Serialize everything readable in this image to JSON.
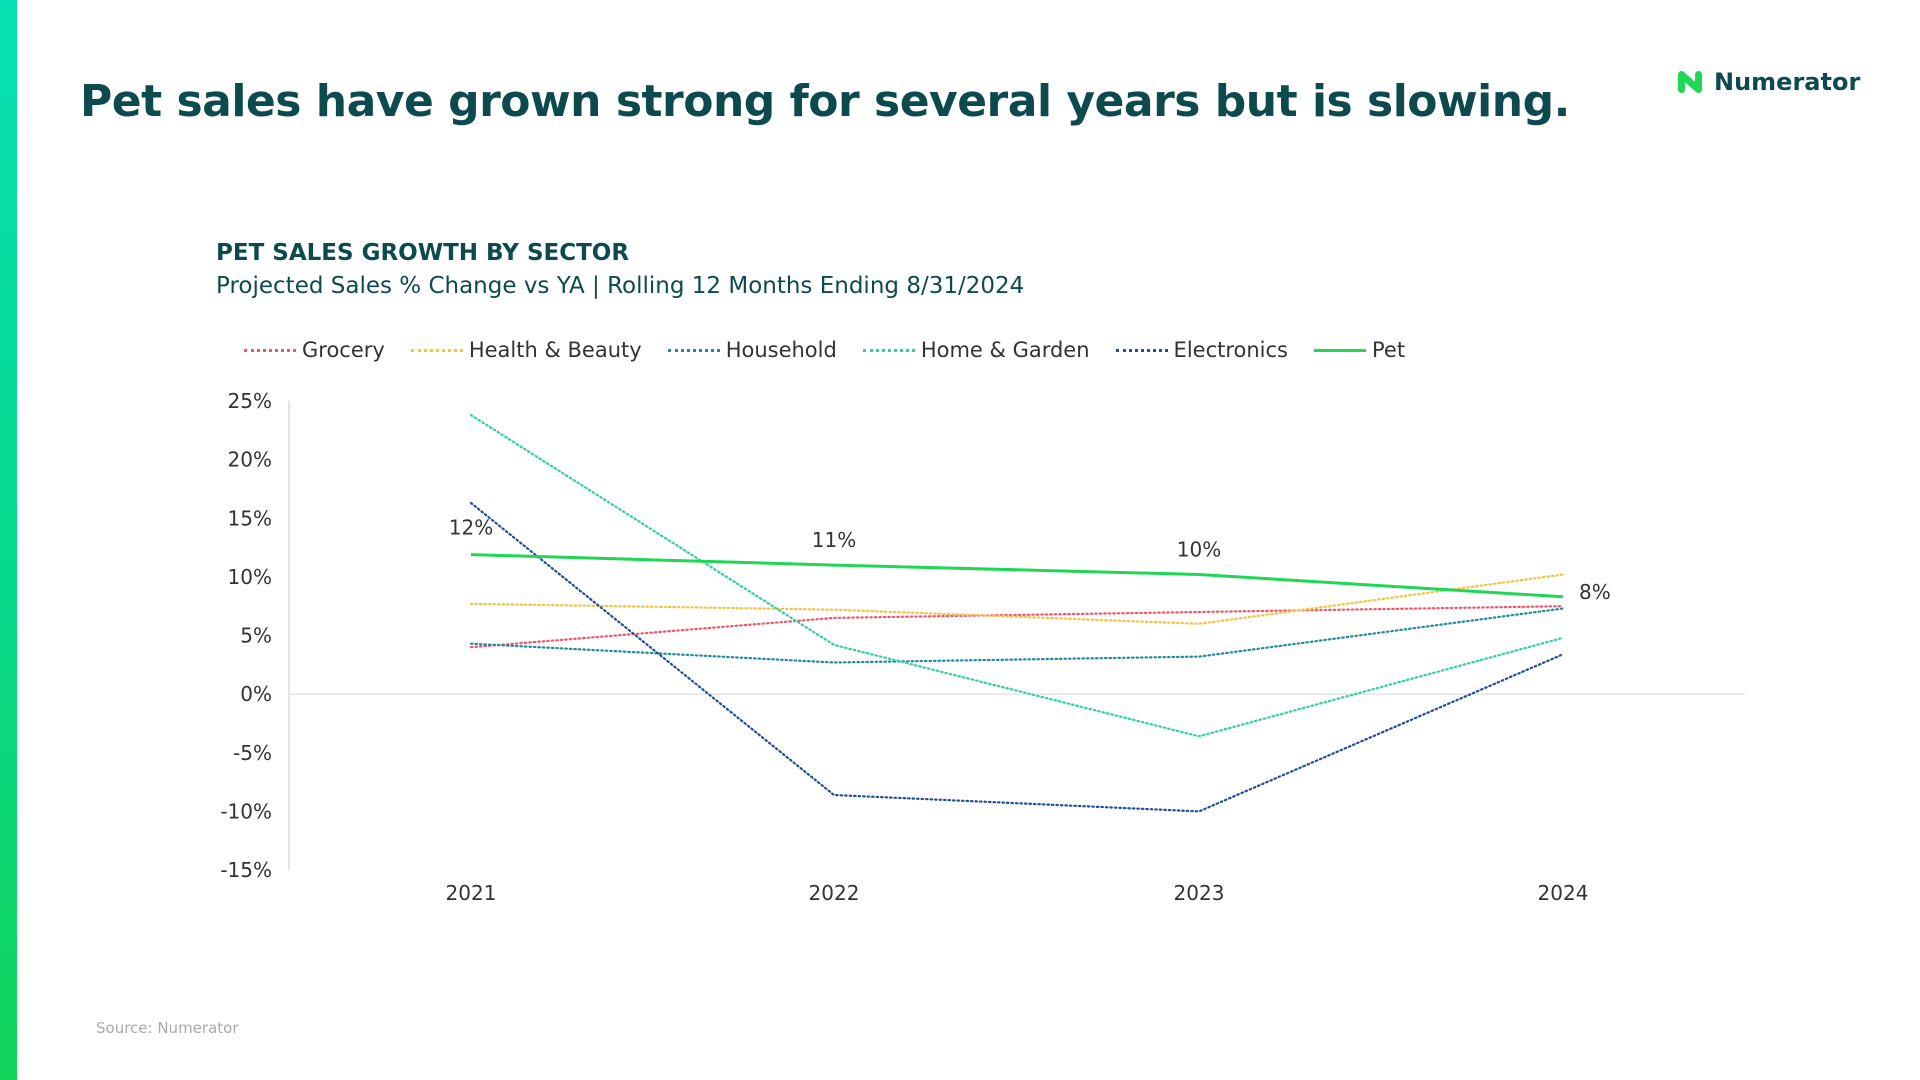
{
  "slide": {
    "title": "Pet sales have grown strong for several years but is slowing.",
    "source": "Source: Numerator"
  },
  "brand": {
    "name": "Numerator",
    "icon": "numerator-logo-icon",
    "color": "#1fd655"
  },
  "colors": {
    "title": "#0d4a4e",
    "accent": "#07d98a"
  },
  "chart_data": {
    "type": "line",
    "title": "PET SALES GROWTH BY SECTOR",
    "subtitle": "Projected Sales % Change vs YA | Rolling 12 Months Ending 8/31/2024",
    "xlabel": "",
    "ylabel": "",
    "categories": [
      "2021",
      "2022",
      "2023",
      "2024"
    ],
    "ylim": [
      -15,
      25
    ],
    "yticks": [
      25,
      20,
      15,
      10,
      5,
      0,
      -5,
      -10,
      -15
    ],
    "ytick_labels": [
      "25%",
      "20%",
      "15%",
      "10%",
      "5%",
      "0%",
      "-5%",
      "-10%",
      "-15%"
    ],
    "grid": false,
    "legend_position": "top",
    "series": [
      {
        "name": "Grocery",
        "values": [
          4.0,
          6.5,
          7.0,
          7.5
        ],
        "color": "#f0566b",
        "style": "dotted"
      },
      {
        "name": "Health & Beauty",
        "values": [
          7.7,
          7.2,
          6.0,
          10.2
        ],
        "color": "#f5c242",
        "style": "dotted"
      },
      {
        "name": "Household",
        "values": [
          4.3,
          2.7,
          3.2,
          7.3
        ],
        "color": "#1f8aa0",
        "style": "dotted"
      },
      {
        "name": "Home & Garden",
        "values": [
          23.8,
          4.2,
          -3.6,
          4.8
        ],
        "color": "#2ed1a2",
        "style": "dotted"
      },
      {
        "name": "Electronics",
        "values": [
          16.3,
          -8.6,
          -10.0,
          3.4
        ],
        "color": "#1f4e9c",
        "style": "dotted"
      },
      {
        "name": "Pet",
        "values": [
          11.9,
          11.0,
          10.2,
          8.3
        ],
        "color": "#1fd655",
        "style": "solid"
      }
    ],
    "data_labels": [
      {
        "series": "Pet",
        "category": "2021",
        "text": "12%",
        "anchor": "left"
      },
      {
        "series": "Pet",
        "category": "2022",
        "text": "11%",
        "anchor": "above"
      },
      {
        "series": "Pet",
        "category": "2023",
        "text": "10%",
        "anchor": "above"
      },
      {
        "series": "Pet",
        "category": "2024",
        "text": "8%",
        "anchor": "right"
      }
    ]
  }
}
